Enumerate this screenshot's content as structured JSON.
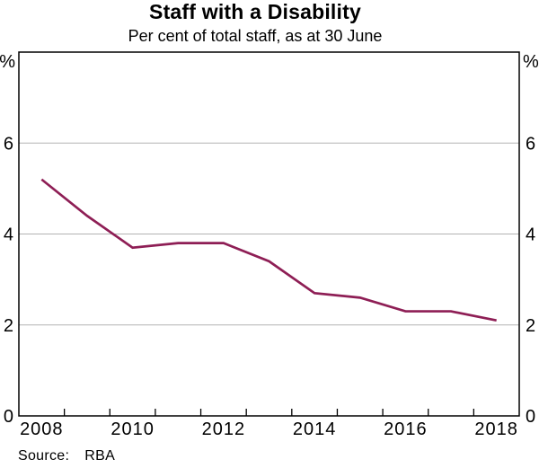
{
  "chart_data": {
    "type": "line",
    "title": "Staff with a Disability",
    "subtitle": "Per cent of total staff, as at 30 June",
    "unit_label": "%",
    "x": [
      2008,
      2009,
      2010,
      2011,
      2012,
      2013,
      2014,
      2015,
      2016,
      2017,
      2018
    ],
    "series": [
      {
        "name": "Staff with a Disability",
        "color": "#8E1E55",
        "values": [
          5.2,
          4.4,
          3.7,
          3.8,
          3.8,
          3.4,
          2.7,
          2.6,
          2.3,
          2.3,
          2.1
        ]
      }
    ],
    "ylim": [
      0,
      8
    ],
    "yticks": [
      0,
      2,
      4,
      6
    ],
    "yticks_labeled_both_sides": true,
    "xtick_labels": [
      "2008",
      "2010",
      "2012",
      "2014",
      "2016",
      "2018"
    ],
    "grid": "horizontal",
    "legend_position": "none",
    "frame_color": "#000000",
    "gridline_color": "#b3b3b3",
    "tick_color": "#000000",
    "text_color": "#000000"
  },
  "footer": {
    "source_label": "Source:",
    "source_value": "RBA"
  }
}
